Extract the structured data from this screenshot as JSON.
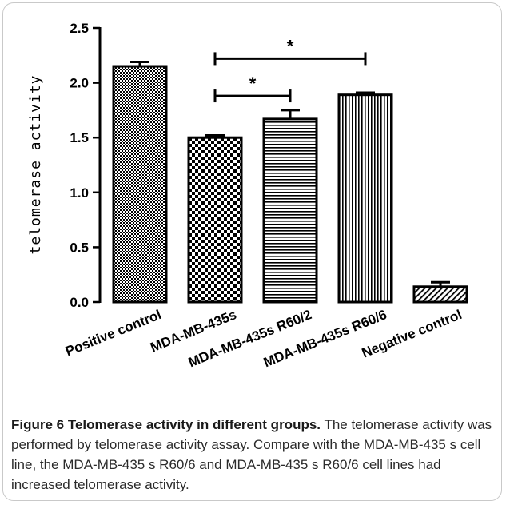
{
  "chart_data": {
    "type": "bar",
    "ylabel": "telomerase activity",
    "xlabel": "",
    "title": "",
    "ylim": [
      0,
      2.5
    ],
    "yticks": [
      "0.0",
      "0.5",
      "1.0",
      "1.5",
      "2.0",
      "2.5"
    ],
    "grid": false,
    "categories": [
      "Positive control",
      "MDA-MB-435s",
      "MDA-MB-435s R60/2",
      "MDA-MB-435s R60/6",
      "Negative control"
    ],
    "values": [
      2.15,
      1.5,
      1.67,
      1.89,
      0.14
    ],
    "errors": [
      0.04,
      0.02,
      0.08,
      0.02,
      0.04
    ],
    "patterns": [
      "checker-fine",
      "checker-coarse",
      "horizontal-lines",
      "vertical-lines",
      "diagonal-lines"
    ],
    "significance": [
      {
        "from": 1,
        "to": 2,
        "y": 1.88,
        "label": "*"
      },
      {
        "from": 1,
        "to": 3,
        "y": 2.22,
        "label": "*"
      }
    ]
  },
  "caption": {
    "label": "Figure 6",
    "title": "Telomerase activity in different groups.",
    "text": "The telomerase activity was performed by telomerase activity assay. Compare with the MDA-MB-435 s cell line, the MDA-MB-435 s R60/6 and MDA-MB-435 s R60/6 cell lines had increased telomerase activity."
  }
}
